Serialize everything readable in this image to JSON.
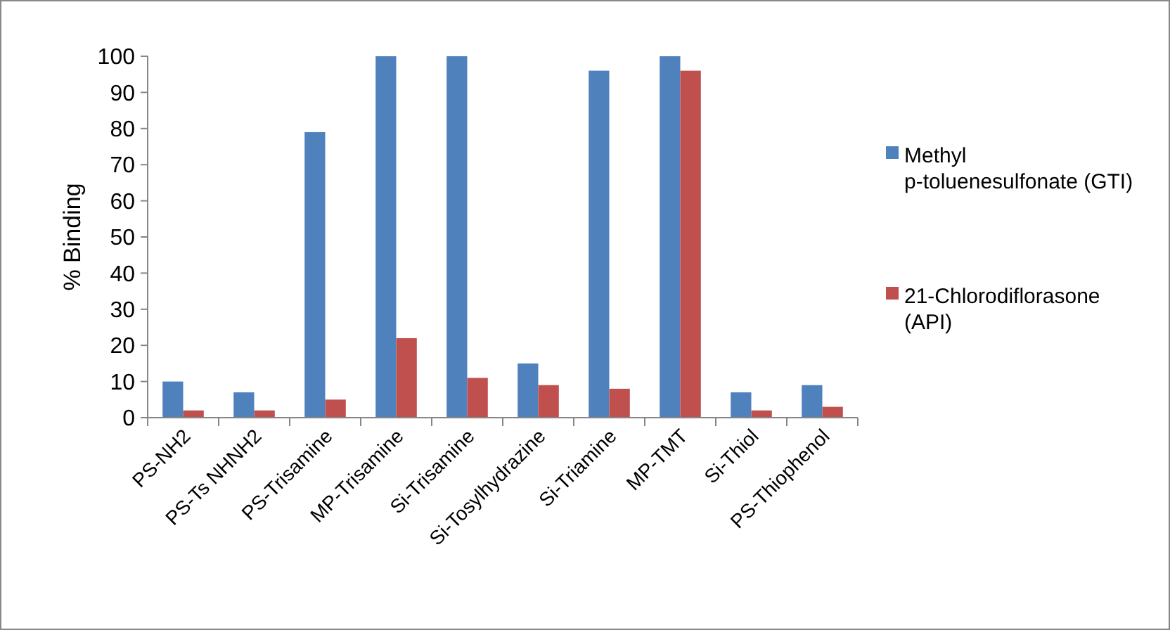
{
  "chart_data": {
    "type": "bar",
    "ylabel": "% Binding",
    "categories": [
      "PS-NH2",
      "PS-Ts NHNH2",
      "PS-Trisamine",
      "MP-Trisamine",
      "Si-Trisamine",
      "Si-Tosylhydrazine",
      "Si-Triamine",
      "MP-TMT",
      "Si-Thiol",
      "PS-Thiophenol"
    ],
    "series": [
      {
        "name": "Methyl p-toluenesulfonate (GTI)",
        "color": "#4f81bd",
        "values": [
          10,
          7,
          79,
          100,
          100,
          15,
          96,
          100,
          7,
          9
        ]
      },
      {
        "name": "21-Chlorodiflorasone (API)",
        "color": "#c0504d",
        "values": [
          2,
          2,
          5,
          22,
          11,
          9,
          8,
          96,
          2,
          3
        ]
      }
    ],
    "ylim": [
      0,
      100
    ],
    "yticks": [
      0,
      10,
      20,
      30,
      40,
      50,
      60,
      70,
      80,
      90,
      100
    ],
    "legend": "right",
    "grid": false
  }
}
